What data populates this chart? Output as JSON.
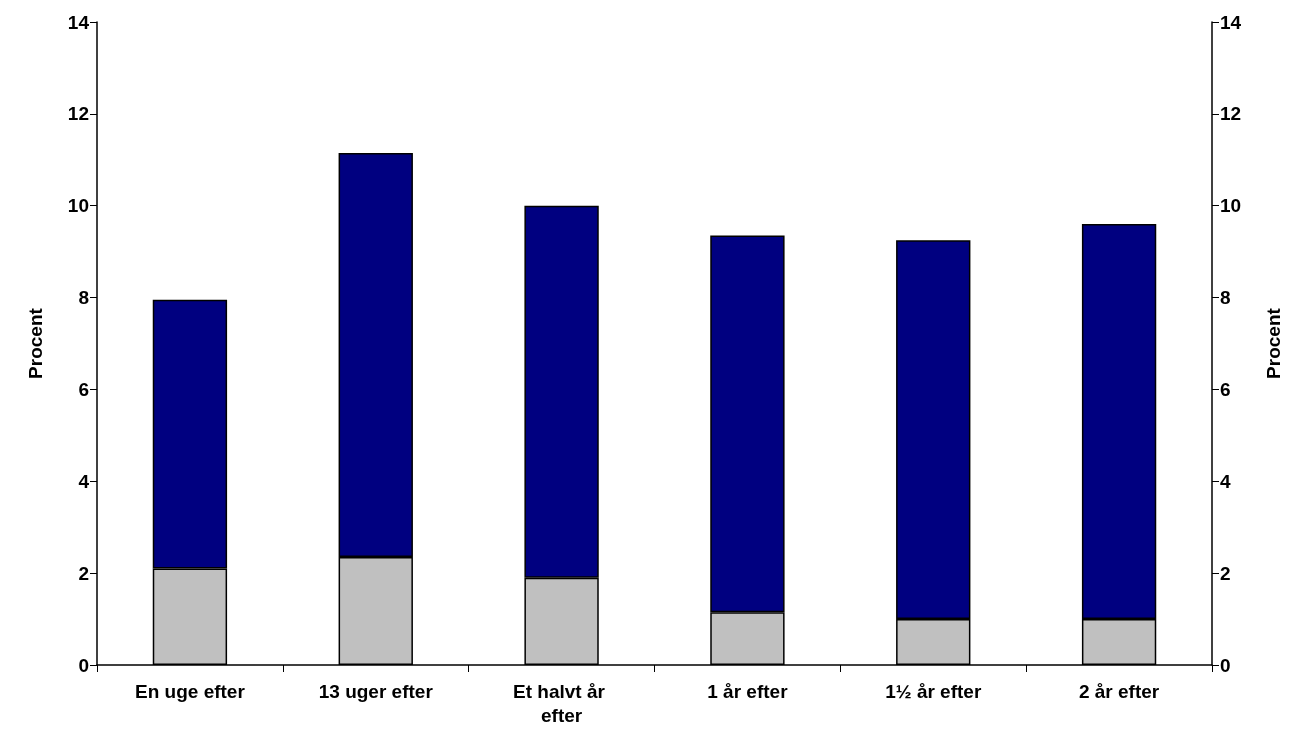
{
  "chart_data": {
    "type": "bar",
    "stacked": true,
    "categories": [
      "En uge efter",
      "13 uger efter",
      "Et halvt år efter",
      "1 år efter",
      "1½ år efter",
      "2 år efter"
    ],
    "series": [
      {
        "color": "#c0c0c0",
        "values": [
          2.1,
          2.35,
          1.9,
          1.15,
          1.0,
          1.0
        ]
      },
      {
        "color": "#000080",
        "values": [
          5.85,
          8.8,
          8.1,
          8.2,
          8.25,
          8.6
        ]
      }
    ],
    "ylabel": "Procent",
    "y2label": "Procent",
    "ylim": [
      0,
      14
    ],
    "yticks": [
      0,
      2,
      4,
      6,
      8,
      10,
      12,
      14
    ],
    "y2lim": [
      0,
      14
    ],
    "y2ticks": [
      0,
      2,
      4,
      6,
      8,
      10,
      12,
      14
    ],
    "grid": false
  }
}
